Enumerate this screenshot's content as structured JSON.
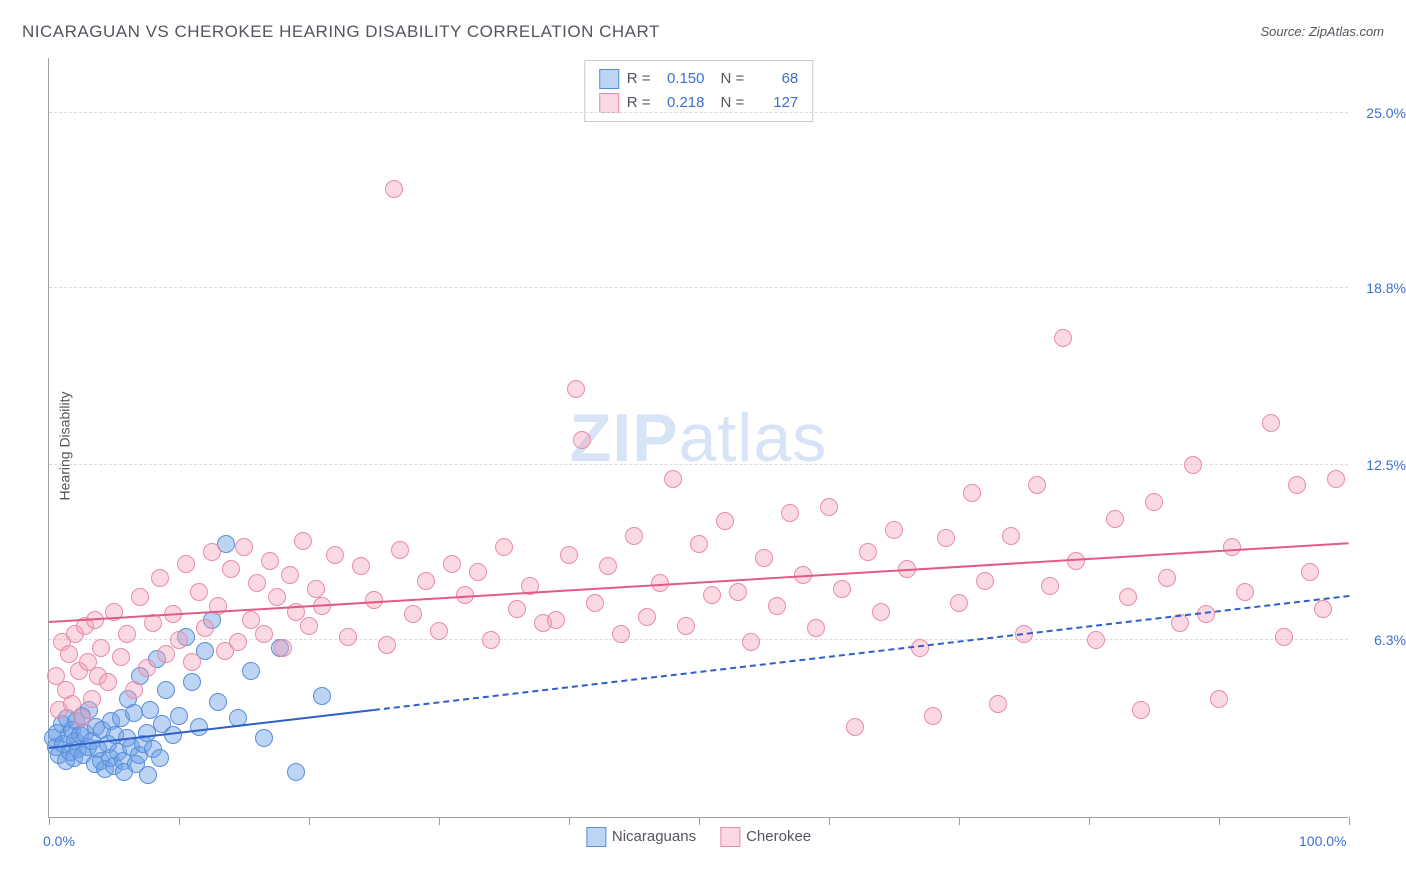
{
  "title": "NICARAGUAN VS CHEROKEE HEARING DISABILITY CORRELATION CHART",
  "source_label": "Source: ZipAtlas.com",
  "ylabel": "Hearing Disability",
  "watermark_bold": "ZIP",
  "watermark_light": "atlas",
  "chart": {
    "type": "scatter",
    "background_color": "#ffffff",
    "grid_color": "#dcdcdc",
    "axis_color": "#9aa0a6",
    "label_color": "#555560",
    "value_color": "#3b6fd6",
    "marker_radius": 9,
    "marker_border_width": 1.2,
    "xlim": [
      0,
      100
    ],
    "ylim": [
      0,
      27
    ],
    "x_tick_positions": [
      0,
      10,
      20,
      30,
      40,
      50,
      60,
      70,
      80,
      90,
      100
    ],
    "x_tick_labels": {
      "0": "0.0%",
      "100": "100.0%"
    },
    "y_gridlines": [
      6.3,
      12.5,
      18.8,
      25.0
    ],
    "y_tick_labels": [
      "6.3%",
      "12.5%",
      "18.8%",
      "25.0%"
    ],
    "series": [
      {
        "name": "Nicaraguans",
        "fill_color": "rgba(108,160,230,0.45)",
        "stroke_color": "#5a8fd8",
        "trend_color": "#2f5fc9",
        "trend_solid_xmax": 25,
        "trend_y_at_x0": 2.4,
        "trend_y_at_x100": 7.8,
        "R": "0.150",
        "N": "68",
        "points": [
          [
            0.3,
            2.8
          ],
          [
            0.5,
            2.5
          ],
          [
            0.6,
            3.0
          ],
          [
            0.8,
            2.2
          ],
          [
            1.0,
            3.3
          ],
          [
            1.1,
            2.6
          ],
          [
            1.3,
            2.0
          ],
          [
            1.4,
            3.5
          ],
          [
            1.5,
            2.9
          ],
          [
            1.6,
            2.3
          ],
          [
            1.8,
            3.1
          ],
          [
            1.9,
            2.1
          ],
          [
            2.0,
            2.7
          ],
          [
            2.1,
            3.4
          ],
          [
            2.2,
            2.4
          ],
          [
            2.4,
            2.9
          ],
          [
            2.5,
            3.6
          ],
          [
            2.6,
            2.2
          ],
          [
            2.8,
            3.0
          ],
          [
            3.0,
            2.5
          ],
          [
            3.1,
            3.8
          ],
          [
            3.3,
            2.7
          ],
          [
            3.5,
            1.9
          ],
          [
            3.6,
            3.2
          ],
          [
            3.8,
            2.4
          ],
          [
            4.0,
            2.0
          ],
          [
            4.1,
            3.1
          ],
          [
            4.3,
            1.7
          ],
          [
            4.5,
            2.6
          ],
          [
            4.7,
            2.1
          ],
          [
            4.8,
            3.4
          ],
          [
            5.0,
            1.8
          ],
          [
            5.1,
            2.9
          ],
          [
            5.3,
            2.3
          ],
          [
            5.5,
            3.5
          ],
          [
            5.7,
            2.0
          ],
          [
            5.8,
            1.6
          ],
          [
            6.0,
            2.8
          ],
          [
            6.1,
            4.2
          ],
          [
            6.3,
            2.5
          ],
          [
            6.5,
            3.7
          ],
          [
            6.7,
            1.9
          ],
          [
            6.9,
            2.2
          ],
          [
            7.0,
            5.0
          ],
          [
            7.2,
            2.6
          ],
          [
            7.5,
            3.0
          ],
          [
            7.6,
            1.5
          ],
          [
            7.8,
            3.8
          ],
          [
            8.0,
            2.4
          ],
          [
            8.3,
            5.6
          ],
          [
            8.5,
            2.1
          ],
          [
            8.7,
            3.3
          ],
          [
            9.0,
            4.5
          ],
          [
            9.5,
            2.9
          ],
          [
            10.0,
            3.6
          ],
          [
            10.5,
            6.4
          ],
          [
            11.0,
            4.8
          ],
          [
            11.5,
            3.2
          ],
          [
            12.0,
            5.9
          ],
          [
            12.5,
            7.0
          ],
          [
            13.0,
            4.1
          ],
          [
            13.6,
            9.7
          ],
          [
            14.5,
            3.5
          ],
          [
            15.5,
            5.2
          ],
          [
            16.5,
            2.8
          ],
          [
            17.8,
            6.0
          ],
          [
            19.0,
            1.6
          ],
          [
            21.0,
            4.3
          ]
        ]
      },
      {
        "name": "Cherokee",
        "fill_color": "rgba(244,159,183,0.40)",
        "stroke_color": "#e98ca8",
        "trend_color": "#e15b85",
        "trend_solid_xmax": 100,
        "trend_y_at_x0": 6.9,
        "trend_y_at_x100": 9.7,
        "R": "0.218",
        "N": "127",
        "points": [
          [
            0.5,
            5.0
          ],
          [
            0.8,
            3.8
          ],
          [
            1.0,
            6.2
          ],
          [
            1.3,
            4.5
          ],
          [
            1.5,
            5.8
          ],
          [
            1.8,
            4.0
          ],
          [
            2.0,
            6.5
          ],
          [
            2.3,
            5.2
          ],
          [
            2.5,
            3.5
          ],
          [
            2.8,
            6.8
          ],
          [
            3.0,
            5.5
          ],
          [
            3.3,
            4.2
          ],
          [
            3.5,
            7.0
          ],
          [
            3.8,
            5.0
          ],
          [
            4.0,
            6.0
          ],
          [
            4.5,
            4.8
          ],
          [
            5.0,
            7.3
          ],
          [
            5.5,
            5.7
          ],
          [
            6.0,
            6.5
          ],
          [
            6.5,
            4.5
          ],
          [
            7.0,
            7.8
          ],
          [
            7.5,
            5.3
          ],
          [
            8.0,
            6.9
          ],
          [
            8.5,
            8.5
          ],
          [
            9.0,
            5.8
          ],
          [
            9.5,
            7.2
          ],
          [
            10.0,
            6.3
          ],
          [
            10.5,
            9.0
          ],
          [
            11.0,
            5.5
          ],
          [
            11.5,
            8.0
          ],
          [
            12.0,
            6.7
          ],
          [
            12.5,
            9.4
          ],
          [
            13.0,
            7.5
          ],
          [
            13.5,
            5.9
          ],
          [
            14.0,
            8.8
          ],
          [
            14.5,
            6.2
          ],
          [
            15.0,
            9.6
          ],
          [
            15.5,
            7.0
          ],
          [
            16.0,
            8.3
          ],
          [
            16.5,
            6.5
          ],
          [
            17.0,
            9.1
          ],
          [
            17.5,
            7.8
          ],
          [
            18.0,
            6.0
          ],
          [
            18.5,
            8.6
          ],
          [
            19.0,
            7.3
          ],
          [
            19.5,
            9.8
          ],
          [
            20.0,
            6.8
          ],
          [
            20.5,
            8.1
          ],
          [
            21.0,
            7.5
          ],
          [
            22.0,
            9.3
          ],
          [
            23.0,
            6.4
          ],
          [
            24.0,
            8.9
          ],
          [
            25.0,
            7.7
          ],
          [
            26.0,
            6.1
          ],
          [
            26.5,
            22.3
          ],
          [
            27.0,
            9.5
          ],
          [
            28.0,
            7.2
          ],
          [
            29.0,
            8.4
          ],
          [
            30.0,
            6.6
          ],
          [
            31.0,
            9.0
          ],
          [
            32.0,
            7.9
          ],
          [
            33.0,
            8.7
          ],
          [
            34.0,
            6.3
          ],
          [
            35.0,
            9.6
          ],
          [
            36.0,
            7.4
          ],
          [
            37.0,
            8.2
          ],
          [
            38.0,
            6.9
          ],
          [
            39.0,
            7.0
          ],
          [
            40.0,
            9.3
          ],
          [
            40.5,
            15.2
          ],
          [
            41.0,
            13.4
          ],
          [
            42.0,
            7.6
          ],
          [
            43.0,
            8.9
          ],
          [
            44.0,
            6.5
          ],
          [
            45.0,
            10.0
          ],
          [
            46.0,
            7.1
          ],
          [
            47.0,
            8.3
          ],
          [
            48.0,
            12.0
          ],
          [
            49.0,
            6.8
          ],
          [
            50.0,
            9.7
          ],
          [
            51.0,
            7.9
          ],
          [
            52.0,
            10.5
          ],
          [
            53.0,
            8.0
          ],
          [
            54.0,
            6.2
          ],
          [
            55.0,
            9.2
          ],
          [
            56.0,
            7.5
          ],
          [
            57.0,
            10.8
          ],
          [
            58.0,
            8.6
          ],
          [
            59.0,
            6.7
          ],
          [
            60.0,
            11.0
          ],
          [
            61.0,
            8.1
          ],
          [
            62.0,
            3.2
          ],
          [
            63.0,
            9.4
          ],
          [
            64.0,
            7.3
          ],
          [
            65.0,
            10.2
          ],
          [
            66.0,
            8.8
          ],
          [
            67.0,
            6.0
          ],
          [
            68.0,
            3.6
          ],
          [
            69.0,
            9.9
          ],
          [
            70.0,
            7.6
          ],
          [
            71.0,
            11.5
          ],
          [
            72.0,
            8.4
          ],
          [
            73.0,
            4.0
          ],
          [
            74.0,
            10.0
          ],
          [
            75.0,
            6.5
          ],
          [
            76.0,
            11.8
          ],
          [
            77.0,
            8.2
          ],
          [
            78.0,
            17.0
          ],
          [
            79.0,
            9.1
          ],
          [
            80.5,
            6.3
          ],
          [
            82.0,
            10.6
          ],
          [
            83.0,
            7.8
          ],
          [
            84.0,
            3.8
          ],
          [
            85.0,
            11.2
          ],
          [
            86.0,
            8.5
          ],
          [
            87.0,
            6.9
          ],
          [
            88.0,
            12.5
          ],
          [
            89.0,
            7.2
          ],
          [
            90.0,
            4.2
          ],
          [
            91.0,
            9.6
          ],
          [
            92.0,
            8.0
          ],
          [
            94.0,
            14.0
          ],
          [
            95.0,
            6.4
          ],
          [
            96.0,
            11.8
          ],
          [
            97.0,
            8.7
          ],
          [
            98.0,
            7.4
          ],
          [
            99.0,
            12.0
          ]
        ]
      }
    ]
  },
  "legend_top_labels": {
    "R": "R =",
    "N": "N ="
  },
  "legend_bottom": [
    {
      "label": "Nicaraguans",
      "fill": "rgba(108,160,230,0.45)",
      "stroke": "#5a8fd8"
    },
    {
      "label": "Cherokee",
      "fill": "rgba(244,159,183,0.40)",
      "stroke": "#e98ca8"
    }
  ]
}
